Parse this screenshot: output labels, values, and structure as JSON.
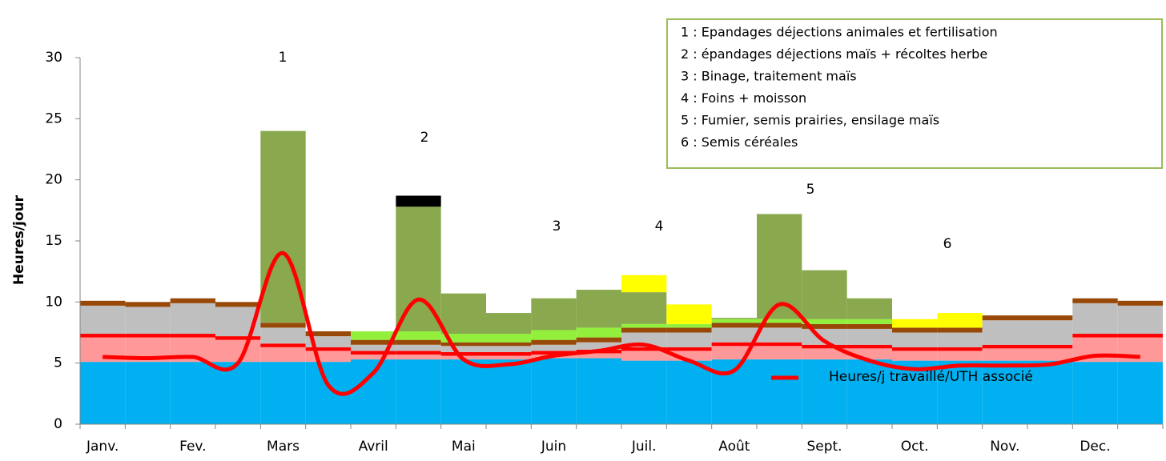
{
  "chart_data": {
    "type": "bar",
    "y_label": "Heures/jour",
    "categories": [
      "Janv.",
      null,
      "Fev.",
      null,
      "Mars",
      null,
      "Avril",
      null,
      "Mai",
      null,
      "Juin",
      null,
      "Juil.",
      null,
      "Août",
      null,
      "Sept.",
      null,
      "Oct.",
      null,
      "Nov.",
      null,
      "Dec.",
      null
    ],
    "ylim": [
      0,
      30
    ],
    "yticks": [
      0,
      5,
      10,
      15,
      20,
      25,
      30
    ],
    "stacked": true,
    "series": [
      {
        "color": "#00b0f0",
        "values": [
          5.1,
          5.1,
          5.1,
          5.1,
          5.1,
          5.1,
          5.3,
          5.3,
          5.3,
          5.3,
          5.4,
          5.4,
          5.2,
          5.2,
          5.3,
          5.3,
          5.3,
          5.3,
          5.2,
          5.2,
          5.2,
          5.2,
          5.1,
          5.1
        ]
      },
      {
        "color": "#ff9999",
        "values": [
          2.0,
          2.0,
          2.0,
          1.8,
          1.2,
          0.9,
          0.4,
          0.4,
          0.3,
          0.3,
          0.3,
          0.4,
          0.8,
          0.8,
          1.1,
          1.1,
          0.9,
          0.9,
          0.8,
          0.8,
          1.0,
          1.0,
          2.0,
          2.0
        ]
      },
      {
        "color": "#ff0000",
        "values": [
          0.3,
          0.3,
          0.3,
          0.3,
          0.3,
          0.3,
          0.3,
          0.3,
          0.3,
          0.3,
          0.3,
          0.3,
          0.3,
          0.3,
          0.3,
          0.3,
          0.3,
          0.3,
          0.3,
          0.3,
          0.3,
          0.3,
          0.3,
          0.3
        ]
      },
      {
        "color": "#bfbfbf",
        "values": [
          2.3,
          2.2,
          2.5,
          2.4,
          1.3,
          0.9,
          0.5,
          0.5,
          0.5,
          0.5,
          0.5,
          0.6,
          1.2,
          1.2,
          1.2,
          1.2,
          1.3,
          1.3,
          1.2,
          1.2,
          2.0,
          2.0,
          2.5,
          2.3
        ]
      },
      {
        "color": "#984807",
        "values": [
          0.4,
          0.4,
          0.4,
          0.4,
          0.4,
          0.4,
          0.4,
          0.4,
          0.3,
          0.3,
          0.4,
          0.4,
          0.4,
          0.4,
          0.4,
          0.4,
          0.4,
          0.4,
          0.4,
          0.4,
          0.4,
          0.4,
          0.4,
          0.4
        ]
      },
      {
        "color": "#92f03c",
        "values": [
          0,
          0,
          0,
          0,
          0,
          0,
          0.7,
          0.7,
          0.7,
          0.7,
          0.8,
          0.8,
          0.3,
          0.3,
          0.3,
          0.3,
          0.4,
          0.4,
          0,
          0,
          0,
          0,
          0,
          0
        ]
      },
      {
        "color": "#8aa84e",
        "values": [
          0,
          0,
          0,
          0,
          15.7,
          0,
          0,
          10.2,
          3.3,
          1.7,
          2.6,
          3.1,
          2.6,
          0,
          0.1,
          8.6,
          4.0,
          1.7,
          0,
          0,
          0,
          0,
          0,
          0
        ]
      },
      {
        "color": "#ffff00",
        "values": [
          0,
          0,
          0,
          0,
          0,
          0,
          0,
          0,
          0,
          0,
          0,
          0,
          1.4,
          1.6,
          0,
          0,
          0,
          0,
          0.7,
          1.2,
          0,
          0,
          0,
          0
        ]
      },
      {
        "color": "#000000",
        "values": [
          0,
          0,
          0,
          0,
          0,
          0,
          0,
          0.9,
          0,
          0,
          0,
          0,
          0,
          0,
          0,
          0,
          0,
          0,
          0,
          0,
          0,
          0,
          0,
          0
        ]
      },
      {
        "type": "line",
        "name": "Heures/j travaillé/UTH associé",
        "color": "#ff0000",
        "values": [
          5.5,
          5.4,
          5.5,
          5.0,
          14.0,
          3.2,
          4.2,
          10.2,
          5.3,
          4.9,
          5.6,
          6.0,
          6.5,
          5.2,
          4.4,
          9.8,
          6.8,
          5.2,
          4.5,
          4.8,
          4.8,
          4.9,
          5.6,
          5.5
        ]
      }
    ],
    "annotations": [
      "1",
      "2",
      "3",
      "4",
      "5",
      "6"
    ],
    "notes": [
      "1 : Epandages déjections animales et fertilisation",
      "2 : épandages déjections maïs + récoltes herbe",
      "3 : Binage, traitement maïs",
      "4 : Foins + moisson",
      "5 : Fumier, semis prairies, ensilage maïs",
      "6 : Semis céréales"
    ]
  }
}
